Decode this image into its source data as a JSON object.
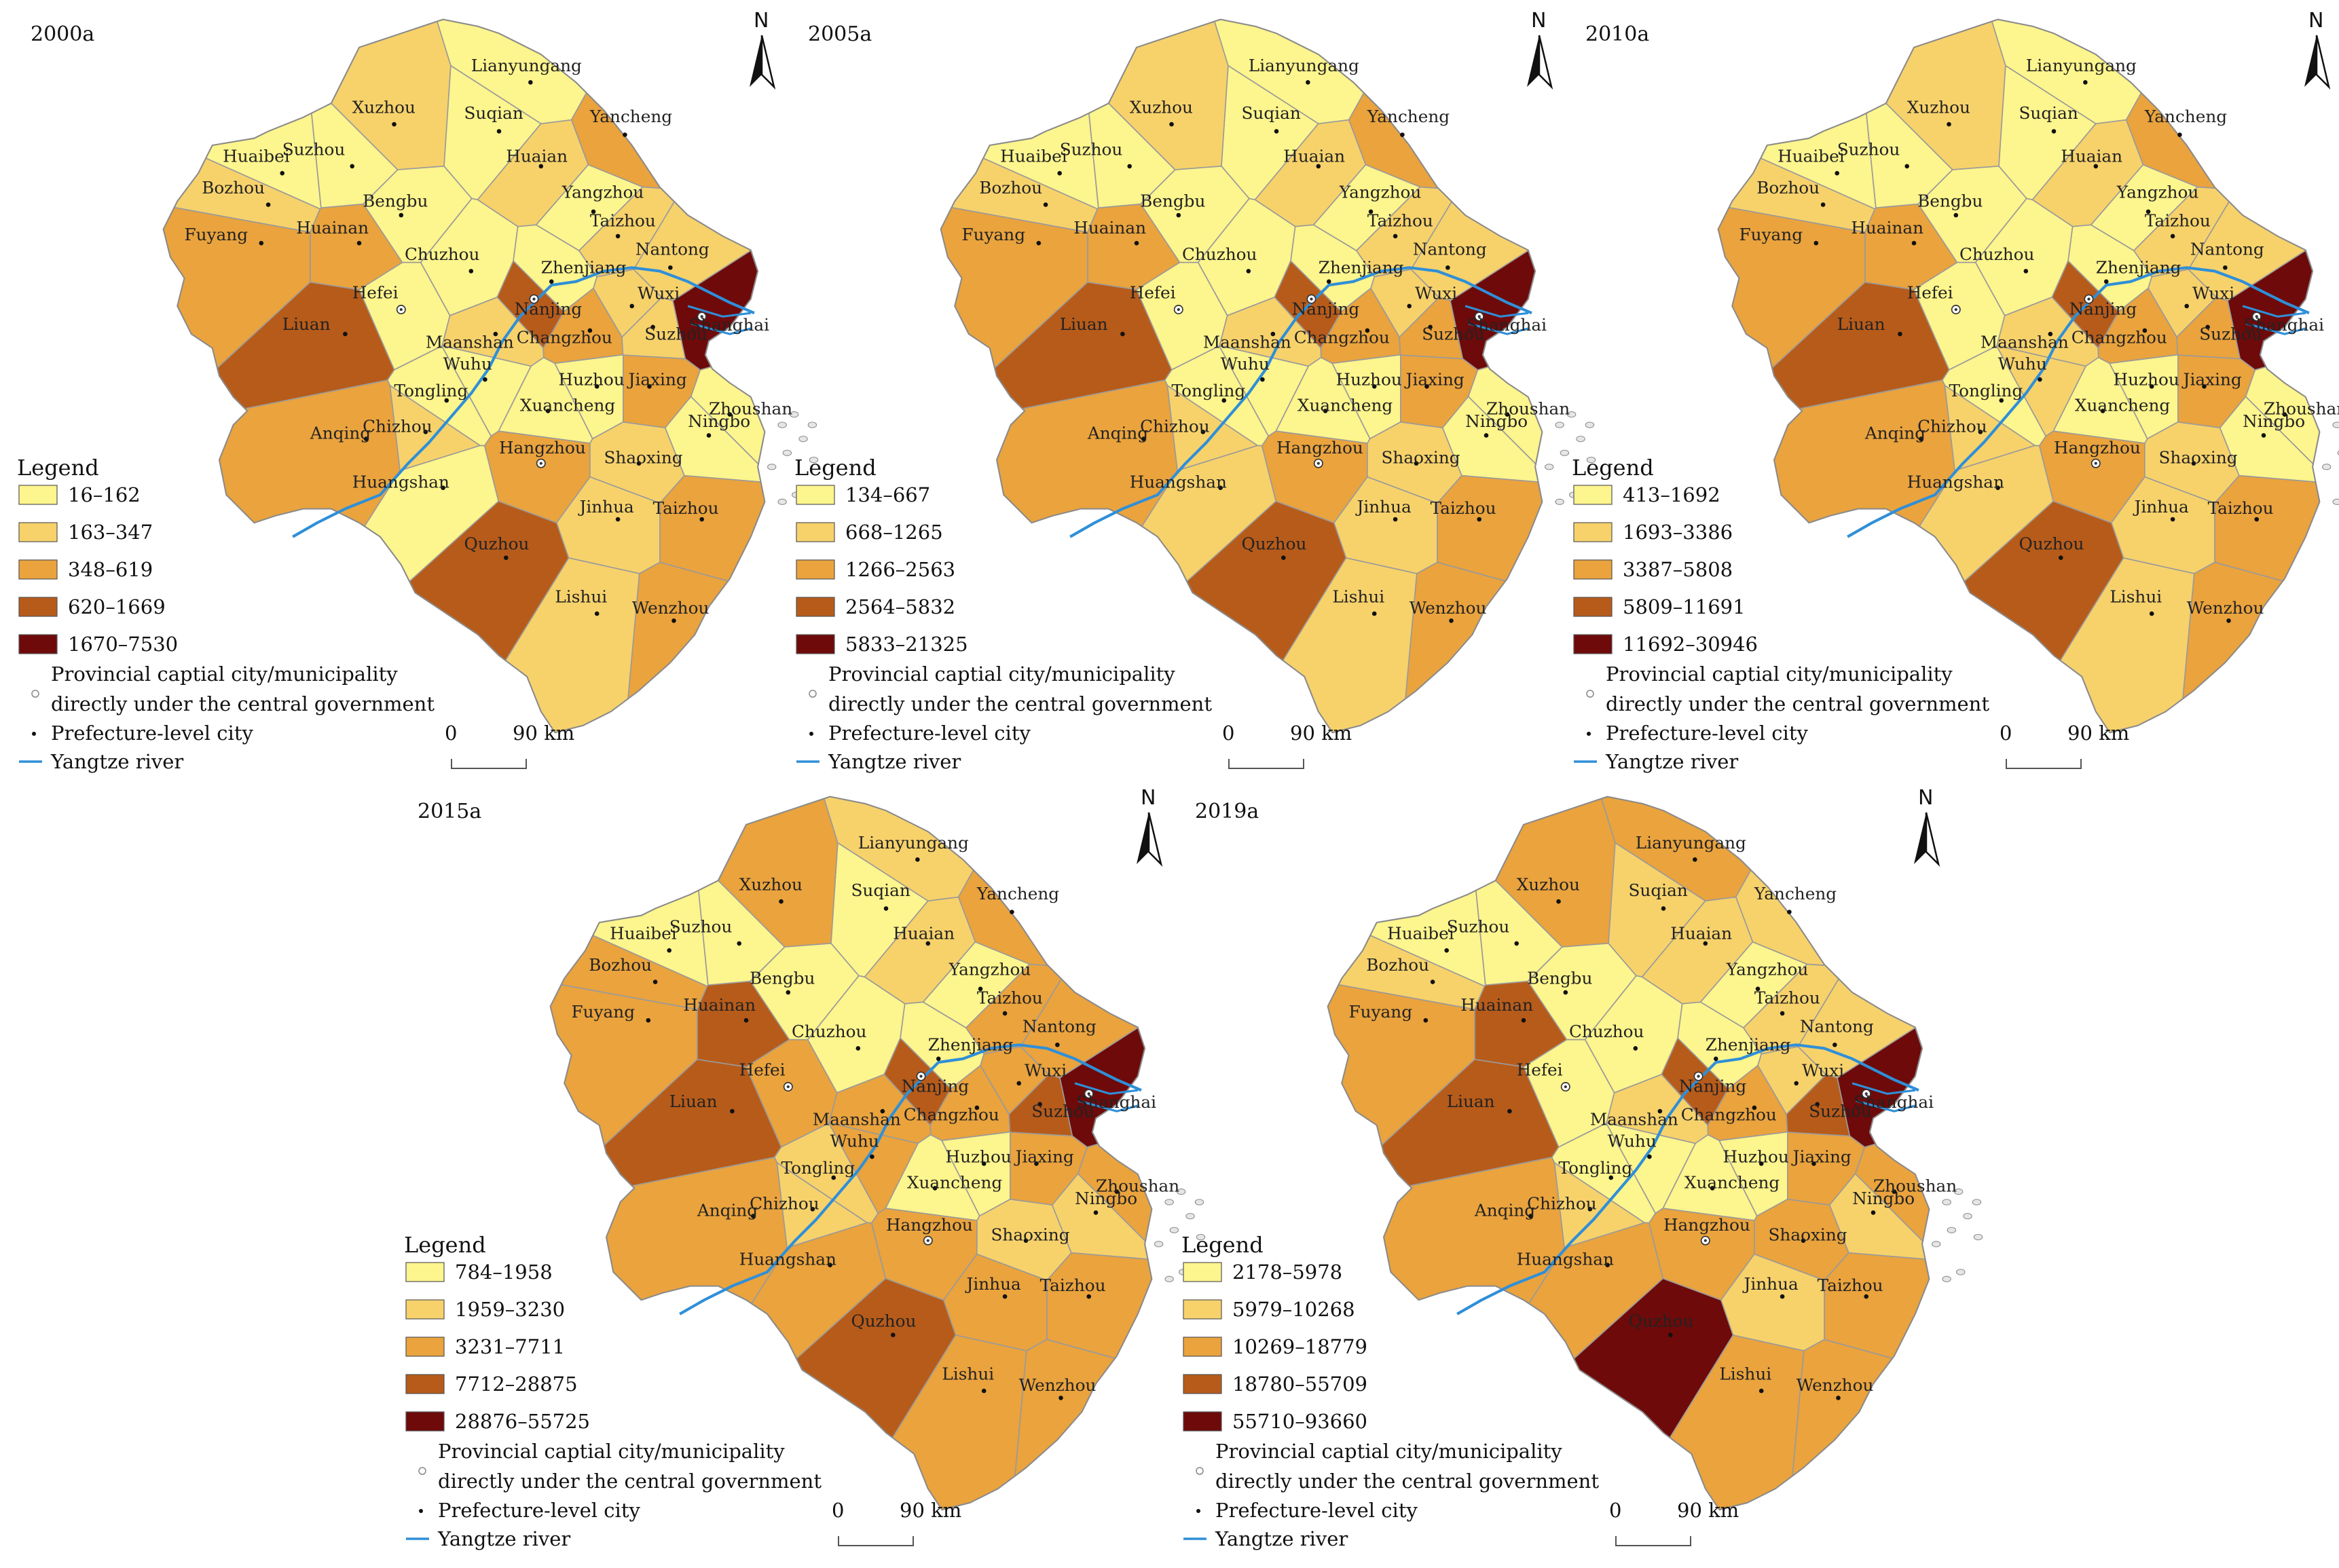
{
  "river_color": "#2f8fd8",
  "panels": [
    {
      "year": "2000a",
      "legend_title": "Legend",
      "classes": [
        {
          "label": "16–162",
          "color": "#fdf58d"
        },
        {
          "label": "163–347",
          "color": "#f7d26b"
        },
        {
          "label": "348–619",
          "color": "#eaa33d"
        },
        {
          "label": "620–1669",
          "color": "#b75b1a"
        },
        {
          "label": "1670–7530",
          "color": "#6e0a0a"
        }
      ],
      "region_classes": [
        4,
        1,
        1,
        2,
        3,
        0,
        1,
        1,
        0,
        2,
        1,
        0,
        0,
        1,
        2,
        0,
        2,
        1,
        0,
        0,
        2,
        2,
        1,
        1,
        3,
        0,
        0,
        1,
        0,
        2,
        1,
        0,
        0,
        0,
        3,
        2,
        0,
        2,
        1,
        0,
        0
      ],
      "symbols": {
        "capital": "Provincial captial city/municipality",
        "capital_2": "directly under the central government",
        "prefecture": "Prefecture-level city",
        "river": "Yangtze river"
      },
      "scale": {
        "zero": "0",
        "dist": "90 km"
      },
      "north": "N"
    },
    {
      "year": "2005a",
      "legend_title": "Legend",
      "classes": [
        {
          "label": "134–667",
          "color": "#fdf58d"
        },
        {
          "label": "668–1265",
          "color": "#f7d26b"
        },
        {
          "label": "1266–2563",
          "color": "#eaa33d"
        },
        {
          "label": "2564–5832",
          "color": "#b75b1a"
        },
        {
          "label": "5833–21325",
          "color": "#6e0a0a"
        }
      ],
      "region_classes": [
        4,
        2,
        1,
        2,
        3,
        0,
        1,
        1,
        0,
        2,
        1,
        0,
        0,
        1,
        2,
        0,
        2,
        1,
        0,
        0,
        2,
        2,
        1,
        1,
        3,
        0,
        0,
        1,
        0,
        2,
        1,
        0,
        1,
        0,
        3,
        2,
        0,
        2,
        1,
        0,
        0
      ],
      "symbols": {
        "capital": "Provincial captial city/municipality",
        "capital_2": "directly under the central government",
        "prefecture": "Prefecture-level city",
        "river": "Yangtze river"
      },
      "scale": {
        "zero": "0",
        "dist": "90 km"
      },
      "north": "N"
    },
    {
      "year": "2010a",
      "legend_title": "Legend",
      "classes": [
        {
          "label": "413–1692",
          "color": "#fdf58d"
        },
        {
          "label": "1693–3386",
          "color": "#f7d26b"
        },
        {
          "label": "3387–5808",
          "color": "#eaa33d"
        },
        {
          "label": "5809–11691",
          "color": "#b75b1a"
        },
        {
          "label": "11692–30946",
          "color": "#6e0a0a"
        }
      ],
      "region_classes": [
        4,
        2,
        1,
        2,
        3,
        0,
        1,
        1,
        0,
        2,
        1,
        0,
        0,
        1,
        2,
        0,
        2,
        1,
        0,
        0,
        2,
        2,
        1,
        1,
        3,
        0,
        1,
        1,
        0,
        2,
        1,
        0,
        1,
        0,
        3,
        2,
        0,
        2,
        1,
        0,
        0
      ],
      "symbols": {
        "capital": "Provincial captial city/municipality",
        "capital_2": "directly under the central government",
        "prefecture": "Prefecture-level city",
        "river": "Yangtze river"
      },
      "scale": {
        "zero": "0",
        "dist": "90 km"
      },
      "north": "N"
    },
    {
      "year": "2015a",
      "legend_title": "Legend",
      "classes": [
        {
          "label": "784–1958",
          "color": "#fdf58d"
        },
        {
          "label": "1959–3230",
          "color": "#f7d26b"
        },
        {
          "label": "3231–7711",
          "color": "#eaa33d"
        },
        {
          "label": "7712–28875",
          "color": "#b75b1a"
        },
        {
          "label": "28876–55725",
          "color": "#6e0a0a"
        }
      ],
      "region_classes": [
        4,
        3,
        2,
        2,
        3,
        0,
        2,
        2,
        0,
        2,
        1,
        1,
        0,
        2,
        2,
        0,
        2,
        1,
        1,
        2,
        2,
        2,
        2,
        2,
        3,
        2,
        2,
        2,
        1,
        2,
        1,
        0,
        2,
        0,
        3,
        3,
        0,
        2,
        2,
        0,
        0
      ],
      "symbols": {
        "capital": "Provincial captial city/municipality",
        "capital_2": "directly under the central government",
        "prefecture": "Prefecture-level city",
        "river": "Yangtze river"
      },
      "scale": {
        "zero": "0",
        "dist": "90 km"
      },
      "north": "N"
    },
    {
      "year": "2019a",
      "legend_title": "Legend",
      "classes": [
        {
          "label": "2178–5978",
          "color": "#fdf58d"
        },
        {
          "label": "5979–10268",
          "color": "#f7d26b"
        },
        {
          "label": "10269–18779",
          "color": "#eaa33d"
        },
        {
          "label": "18780–55709",
          "color": "#b75b1a"
        },
        {
          "label": "55710–93660",
          "color": "#6e0a0a"
        }
      ],
      "region_classes": [
        4,
        3,
        1,
        2,
        3,
        0,
        1,
        1,
        0,
        1,
        1,
        2,
        1,
        2,
        2,
        0,
        2,
        2,
        1,
        2,
        2,
        2,
        1,
        2,
        4,
        0,
        0,
        1,
        0,
        2,
        1,
        0,
        2,
        0,
        3,
        3,
        0,
        2,
        1,
        0,
        0
      ],
      "symbols": {
        "capital": "Provincial captial city/municipality",
        "capital_2": "directly under the central government",
        "prefecture": "Prefecture-level city",
        "river": "Yangtze river"
      },
      "scale": {
        "zero": "0",
        "dist": "90 km"
      },
      "north": "N"
    }
  ],
  "cities": [
    {
      "name": "Shanghai",
      "capital": true
    },
    {
      "name": "Suzhou",
      "capital": false
    },
    {
      "name": "Wuxi",
      "capital": false
    },
    {
      "name": "Changzhou",
      "capital": false
    },
    {
      "name": "Nanjing",
      "capital": true
    },
    {
      "name": "Zhenjiang",
      "capital": false
    },
    {
      "name": "Nantong",
      "capital": false
    },
    {
      "name": "Taizhou",
      "capital": false
    },
    {
      "name": "Yangzhou",
      "capital": false
    },
    {
      "name": "Yancheng",
      "capital": false
    },
    {
      "name": "Huaian",
      "capital": false
    },
    {
      "name": "Lianyungang",
      "capital": false
    },
    {
      "name": "Suqian",
      "capital": false
    },
    {
      "name": "Xuzhou",
      "capital": false
    },
    {
      "name": "Hangzhou",
      "capital": true
    },
    {
      "name": "Huzhou",
      "capital": false
    },
    {
      "name": "Jiaxing",
      "capital": false
    },
    {
      "name": "Shaoxing",
      "capital": false
    },
    {
      "name": "Ningbo",
      "capital": false
    },
    {
      "name": "Zhoushan",
      "capital": false
    },
    {
      "name": "Taizhou",
      "capital": false
    },
    {
      "name": "Wenzhou",
      "capital": false
    },
    {
      "name": "Jinhua",
      "capital": false
    },
    {
      "name": "Lishui",
      "capital": false
    },
    {
      "name": "Quzhou",
      "capital": false
    },
    {
      "name": "Hefei",
      "capital": true
    },
    {
      "name": "Wuhu",
      "capital": false
    },
    {
      "name": "Maanshan",
      "capital": false
    },
    {
      "name": "Tongling",
      "capital": false
    },
    {
      "name": "Anqing",
      "capital": false
    },
    {
      "name": "Chizhou",
      "capital": false
    },
    {
      "name": "Xuancheng",
      "capital": false
    },
    {
      "name": "Huangshan",
      "capital": false
    },
    {
      "name": "Chuzhou",
      "capital": false
    },
    {
      "name": "Liuan",
      "capital": false
    },
    {
      "name": "Huainan",
      "capital": false
    },
    {
      "name": "Bengbu",
      "capital": false
    },
    {
      "name": "Fuyang",
      "capital": false
    },
    {
      "name": "Bozhou",
      "capital": false
    },
    {
      "name": "Huaibei",
      "capital": false
    },
    {
      "name": "Suzhou",
      "capital": false
    }
  ]
}
